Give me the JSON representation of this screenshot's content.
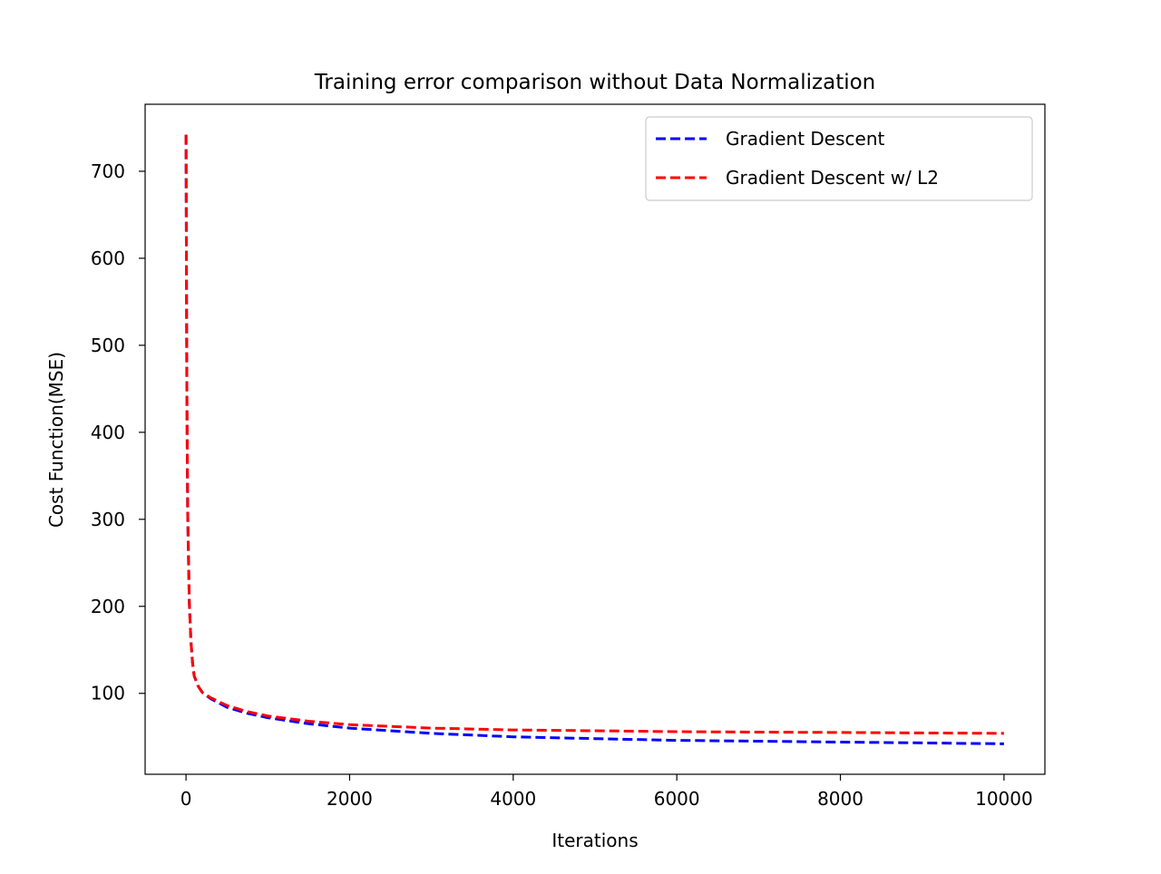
{
  "chart_data": {
    "type": "line",
    "title": "Training error comparison without Data Normalization",
    "xlabel": "Iterations",
    "ylabel": "Cost Function(MSE)",
    "xlim": [
      -500,
      10500
    ],
    "ylim": [
      7,
      777
    ],
    "xticks": [
      0,
      2000,
      4000,
      6000,
      8000,
      10000
    ],
    "yticks": [
      100,
      200,
      300,
      400,
      500,
      600,
      700
    ],
    "legend_position": "upper right",
    "series": [
      {
        "name": "Gradient Descent",
        "color": "#0000ff",
        "line_style": "dashed",
        "x": [
          0,
          10,
          20,
          40,
          60,
          80,
          100,
          150,
          200,
          300,
          500,
          750,
          1000,
          1500,
          2000,
          2500,
          3000,
          3500,
          4000,
          5000,
          6000,
          7000,
          8000,
          9000,
          10000
        ],
        "y": [
          742,
          450,
          310,
          205,
          160,
          135,
          120,
          108,
          101,
          94,
          84,
          77,
          72,
          65,
          60,
          57,
          54,
          52,
          50,
          48,
          46,
          45,
          44,
          43,
          42
        ]
      },
      {
        "name": "Gradient Descent w/ L2",
        "color": "#ff0000",
        "line_style": "dashed",
        "x": [
          0,
          10,
          20,
          40,
          60,
          80,
          100,
          150,
          200,
          300,
          500,
          750,
          1000,
          1500,
          2000,
          2500,
          3000,
          3500,
          4000,
          5000,
          6000,
          7000,
          8000,
          9000,
          10000
        ],
        "y": [
          742,
          450,
          310,
          205,
          160,
          135,
          120,
          108,
          101,
          95,
          86,
          79,
          74,
          68,
          64,
          62,
          60,
          59,
          58,
          57,
          56,
          55.5,
          55,
          54.5,
          54
        ]
      }
    ]
  }
}
